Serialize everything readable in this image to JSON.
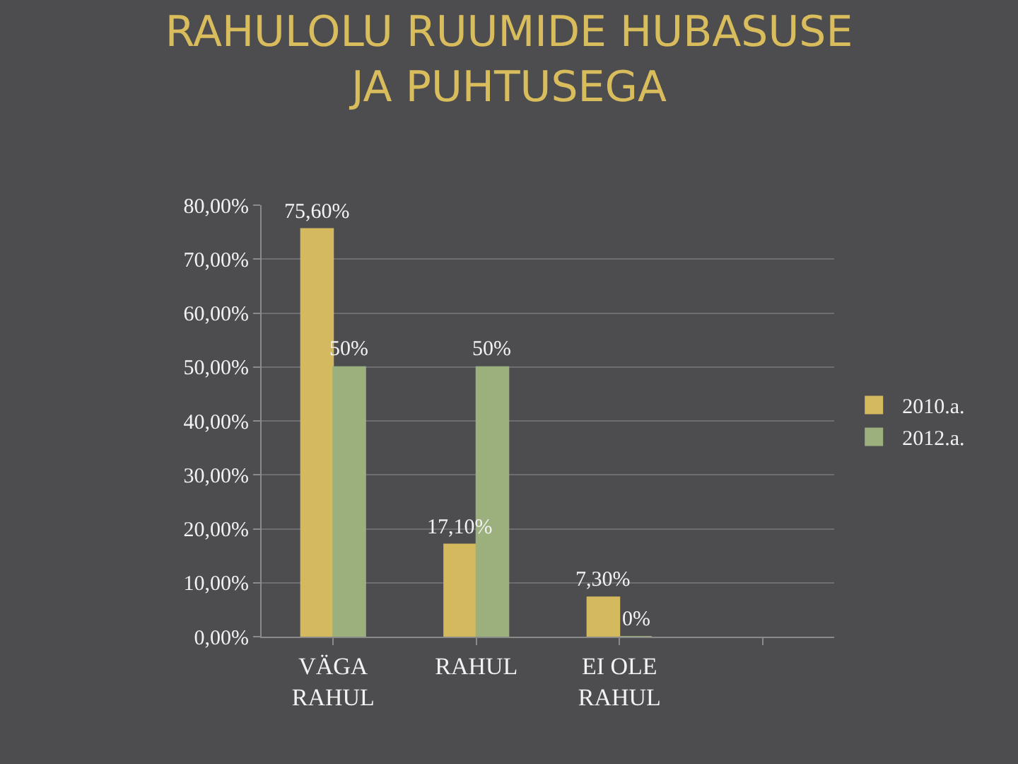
{
  "chart_data": {
    "type": "bar",
    "title": "RAHULOLU RUUMIDE HUBASUSE JA PUHTUSEGA",
    "categories": [
      "VÄGA RAHUL",
      "RAHUL",
      "EI OLE RAHUL",
      null
    ],
    "series": [
      {
        "name": "2010.a.",
        "color": "#d4b95e",
        "values": [
          75.6,
          17.1,
          7.3,
          null
        ],
        "value_labels": [
          "75,60%",
          "17,10%",
          "7,30%",
          null
        ]
      },
      {
        "name": "2012.a.",
        "color": "#9bb07c",
        "values": [
          50,
          50,
          0,
          null
        ],
        "value_labels": [
          "50%",
          "50%",
          "0%",
          null
        ]
      }
    ],
    "ylim": [
      0,
      80
    ],
    "yticks": [
      {
        "value": 0,
        "label": "0,00%"
      },
      {
        "value": 10,
        "label": "10,00%"
      },
      {
        "value": 20,
        "label": "20,00%"
      },
      {
        "value": 30,
        "label": "30,00%"
      },
      {
        "value": 40,
        "label": "40,00%"
      },
      {
        "value": 50,
        "label": "50,00%"
      },
      {
        "value": 60,
        "label": "60,00%"
      },
      {
        "value": 70,
        "label": "70,00%"
      },
      {
        "value": 80,
        "label": "80,00%"
      }
    ],
    "grid": "y",
    "legend": "right"
  }
}
